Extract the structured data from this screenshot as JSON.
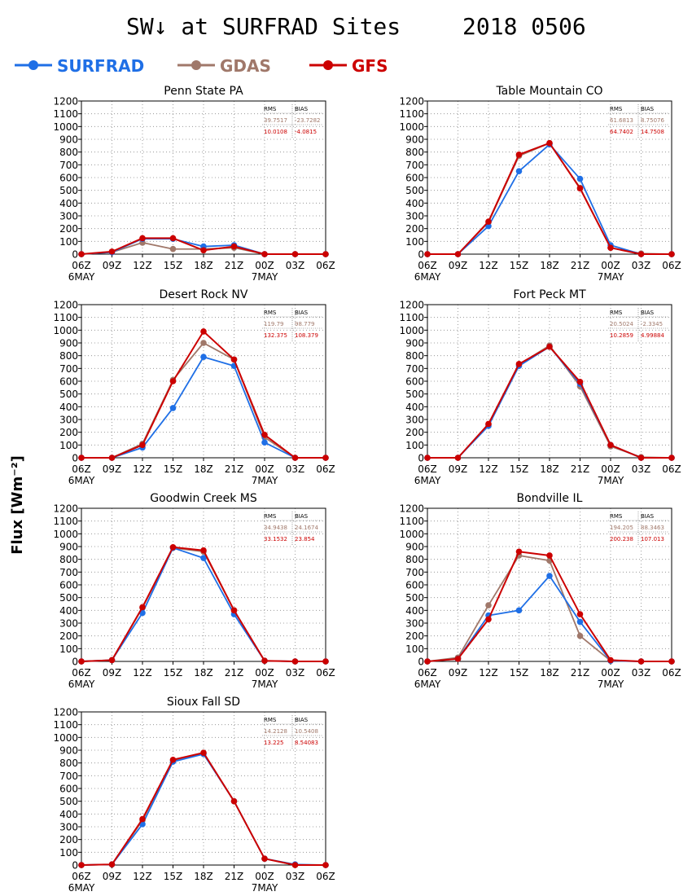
{
  "title": {
    "left": "SW↓ at SURFRAD Sites",
    "right": "2018 0506"
  },
  "ylabel": "Flux [Wm⁻²]",
  "legend": [
    {
      "name": "SURFRAD",
      "color": "#1f6fe6"
    },
    {
      "name": "GDAS",
      "color": "#a0786a"
    },
    {
      "name": "GFS",
      "color": "#cc0000"
    }
  ],
  "stats_headers": {
    "rms": "RMS",
    "bias": "BIAS"
  },
  "chart_data": [
    {
      "type": "line",
      "title": "Penn State PA",
      "x": [
        "06Z",
        "09Z",
        "12Z",
        "15Z",
        "18Z",
        "21Z",
        "00Z",
        "03Z",
        "06Z"
      ],
      "x_dates": {
        "0": "6MAY",
        "6": "7MAY"
      },
      "ylim": [
        0,
        1200
      ],
      "yticks": [
        0,
        100,
        200,
        300,
        400,
        500,
        600,
        700,
        800,
        900,
        1000,
        1100,
        1200
      ],
      "grid": true,
      "series": [
        {
          "name": "SURFRAD",
          "values": [
            0,
            15,
            120,
            120,
            60,
            70,
            0,
            0,
            0
          ]
        },
        {
          "name": "GDAS",
          "values": [
            0,
            15,
            90,
            40,
            40,
            50,
            0,
            0,
            0
          ]
        },
        {
          "name": "GFS",
          "values": [
            0,
            20,
            125,
            125,
            30,
            60,
            0,
            0,
            0
          ]
        }
      ],
      "stats": {
        "GDAS": {
          "rms": "39.7517",
          "bias": "-23.7282"
        },
        "GFS": {
          "rms": "10.0108",
          "bias": "-4.0815"
        }
      }
    },
    {
      "type": "line",
      "title": "Table Mountain CO",
      "x": [
        "06Z",
        "09Z",
        "12Z",
        "15Z",
        "18Z",
        "21Z",
        "00Z",
        "03Z",
        "06Z"
      ],
      "x_dates": {
        "0": "6MAY",
        "6": "7MAY"
      },
      "ylim": [
        0,
        1200
      ],
      "yticks": [
        0,
        100,
        200,
        300,
        400,
        500,
        600,
        700,
        800,
        900,
        1000,
        1100,
        1200
      ],
      "grid": true,
      "series": [
        {
          "name": "SURFRAD",
          "values": [
            0,
            0,
            220,
            650,
            860,
            590,
            70,
            0,
            0
          ]
        },
        {
          "name": "GDAS",
          "values": [
            0,
            0,
            250,
            770,
            870,
            520,
            50,
            5,
            0
          ]
        },
        {
          "name": "GFS",
          "values": [
            0,
            0,
            255,
            780,
            870,
            515,
            50,
            0,
            0
          ]
        }
      ],
      "stats": {
        "GDAS": {
          "rms": "61.6813",
          "bias": "8.75076"
        },
        "GFS": {
          "rms": "64.7402",
          "bias": "14.7508"
        }
      }
    },
    {
      "type": "line",
      "title": "Desert Rock NV",
      "x": [
        "06Z",
        "09Z",
        "12Z",
        "15Z",
        "18Z",
        "21Z",
        "00Z",
        "03Z",
        "06Z"
      ],
      "x_dates": {
        "0": "6MAY",
        "6": "7MAY"
      },
      "ylim": [
        0,
        1200
      ],
      "yticks": [
        0,
        100,
        200,
        300,
        400,
        500,
        600,
        700,
        800,
        900,
        1000,
        1100,
        1200
      ],
      "grid": true,
      "series": [
        {
          "name": "SURFRAD",
          "values": [
            0,
            0,
            80,
            390,
            790,
            720,
            120,
            0,
            0
          ]
        },
        {
          "name": "GDAS",
          "values": [
            0,
            0,
            110,
            610,
            900,
            770,
            160,
            0,
            0
          ]
        },
        {
          "name": "GFS",
          "values": [
            0,
            0,
            100,
            600,
            990,
            770,
            180,
            0,
            0
          ]
        }
      ],
      "stats": {
        "GDAS": {
          "rms": "119.79",
          "bias": "98.779"
        },
        "GFS": {
          "rms": "132.375",
          "bias": "108.379"
        }
      }
    },
    {
      "type": "line",
      "title": "Fort Peck MT",
      "x": [
        "06Z",
        "09Z",
        "12Z",
        "15Z",
        "18Z",
        "21Z",
        "00Z",
        "03Z",
        "06Z"
      ],
      "x_dates": {
        "0": "6MAY",
        "6": "7MAY"
      },
      "ylim": [
        0,
        1200
      ],
      "yticks": [
        0,
        100,
        200,
        300,
        400,
        500,
        600,
        700,
        800,
        900,
        1000,
        1100,
        1200
      ],
      "grid": true,
      "series": [
        {
          "name": "SURFRAD",
          "values": [
            0,
            0,
            250,
            720,
            870,
            580,
            100,
            0,
            0
          ]
        },
        {
          "name": "GDAS",
          "values": [
            0,
            0,
            260,
            730,
            880,
            560,
            90,
            5,
            0
          ]
        },
        {
          "name": "GFS",
          "values": [
            0,
            0,
            265,
            735,
            870,
            595,
            100,
            0,
            0
          ]
        }
      ],
      "stats": {
        "GDAS": {
          "rms": "20.5024",
          "bias": "-2.3345"
        },
        "GFS": {
          "rms": "10.2859",
          "bias": "4.99884"
        }
      }
    },
    {
      "type": "line",
      "title": "Goodwin Creek MS",
      "x": [
        "06Z",
        "09Z",
        "12Z",
        "15Z",
        "18Z",
        "21Z",
        "00Z",
        "03Z",
        "06Z"
      ],
      "x_dates": {
        "0": "6MAY",
        "6": "7MAY"
      },
      "ylim": [
        0,
        1200
      ],
      "yticks": [
        0,
        100,
        200,
        300,
        400,
        500,
        600,
        700,
        800,
        900,
        1000,
        1100,
        1200
      ],
      "grid": true,
      "series": [
        {
          "name": "SURFRAD",
          "values": [
            0,
            10,
            380,
            890,
            810,
            370,
            5,
            0,
            0
          ]
        },
        {
          "name": "GDAS",
          "values": [
            0,
            10,
            420,
            890,
            860,
            400,
            5,
            0,
            0
          ]
        },
        {
          "name": "GFS",
          "values": [
            0,
            10,
            425,
            895,
            870,
            400,
            5,
            0,
            0
          ]
        }
      ],
      "stats": {
        "GDAS": {
          "rms": "34.9438",
          "bias": "24.1674"
        },
        "GFS": {
          "rms": "33.1532",
          "bias": "23.854"
        }
      }
    },
    {
      "type": "line",
      "title": "Bondville IL",
      "x": [
        "06Z",
        "09Z",
        "12Z",
        "15Z",
        "18Z",
        "21Z",
        "00Z",
        "03Z",
        "06Z"
      ],
      "x_dates": {
        "0": "6MAY",
        "6": "7MAY"
      },
      "ylim": [
        0,
        1200
      ],
      "yticks": [
        0,
        100,
        200,
        300,
        400,
        500,
        600,
        700,
        800,
        900,
        1000,
        1100,
        1200
      ],
      "grid": true,
      "series": [
        {
          "name": "SURFRAD",
          "values": [
            0,
            20,
            360,
            400,
            670,
            310,
            5,
            0,
            0
          ]
        },
        {
          "name": "GDAS",
          "values": [
            0,
            30,
            440,
            830,
            790,
            200,
            5,
            0,
            0
          ]
        },
        {
          "name": "GFS",
          "values": [
            0,
            20,
            330,
            860,
            830,
            370,
            10,
            0,
            0
          ]
        }
      ],
      "stats": {
        "GDAS": {
          "rms": "194.205",
          "bias": "88.3463"
        },
        "GFS": {
          "rms": "200.238",
          "bias": "107.013"
        }
      }
    },
    {
      "type": "line",
      "title": "Sioux Fall SD",
      "x": [
        "06Z",
        "09Z",
        "12Z",
        "15Z",
        "18Z",
        "21Z",
        "00Z",
        "03Z",
        "06Z"
      ],
      "x_dates": {
        "0": "6MAY",
        "6": "7MAY"
      },
      "ylim": [
        0,
        1200
      ],
      "yticks": [
        0,
        100,
        200,
        300,
        400,
        500,
        600,
        700,
        800,
        900,
        1000,
        1100,
        1200
      ],
      "grid": true,
      "series": [
        {
          "name": "SURFRAD",
          "values": [
            0,
            5,
            320,
            810,
            870,
            500,
            50,
            5,
            0
          ]
        },
        {
          "name": "GDAS",
          "values": [
            0,
            5,
            350,
            820,
            880,
            500,
            50,
            0,
            0
          ]
        },
        {
          "name": "GFS",
          "values": [
            0,
            5,
            360,
            825,
            880,
            500,
            50,
            0,
            0
          ]
        }
      ],
      "stats": {
        "GDAS": {
          "rms": "14.2128",
          "bias": "10.5408"
        },
        "GFS": {
          "rms": "13.225",
          "bias": "8.54083"
        }
      }
    }
  ]
}
